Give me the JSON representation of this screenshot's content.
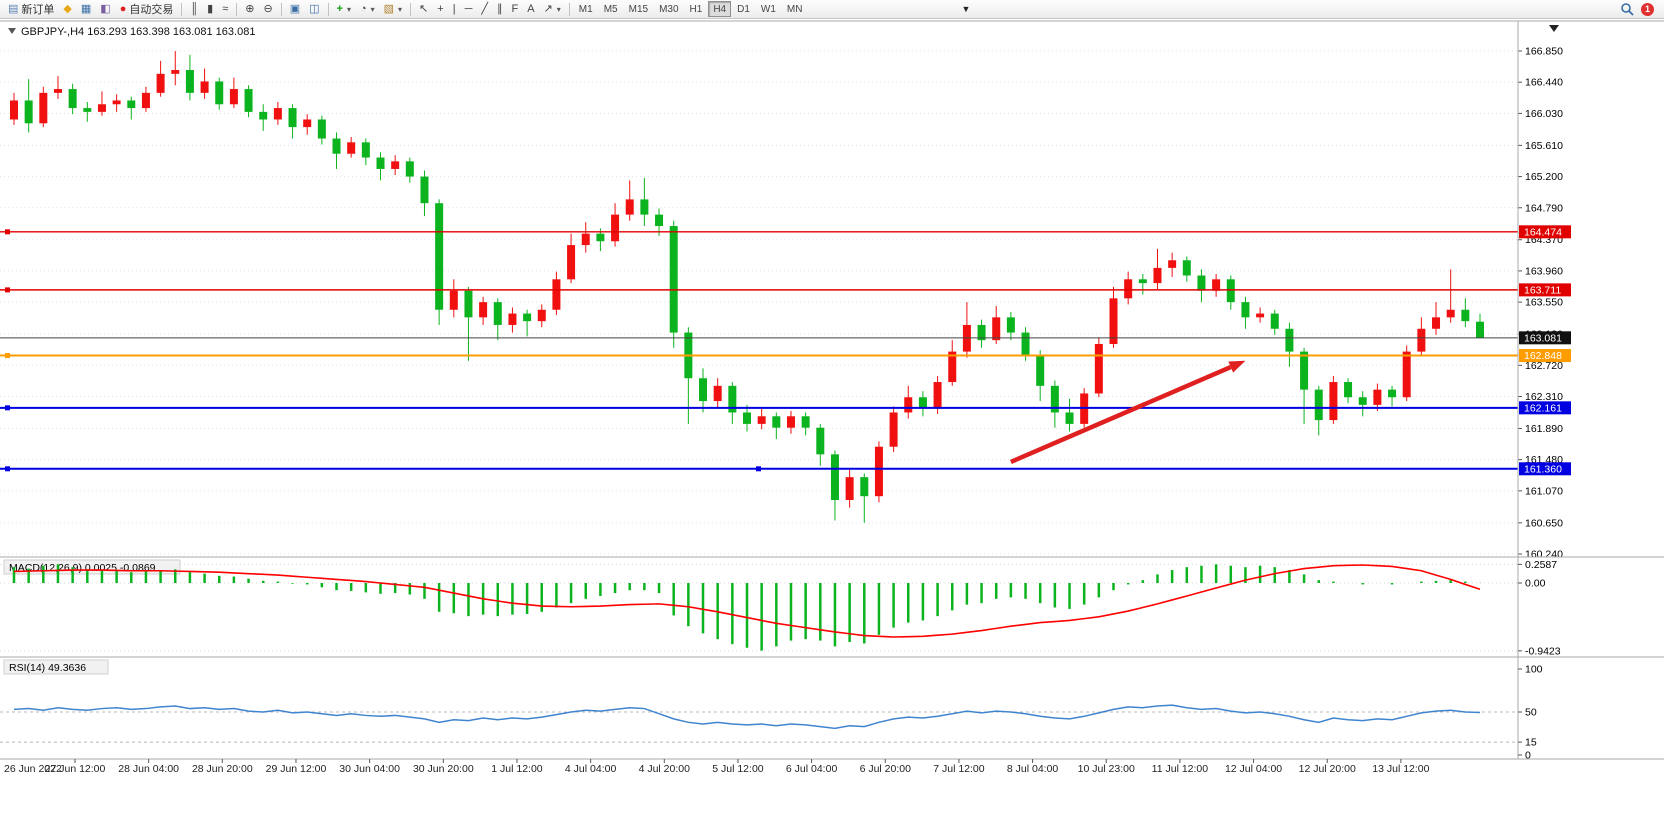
{
  "toolbar": {
    "new_order_label": "新订单",
    "auto_trading_label": "自动交易",
    "timeframes": [
      "M1",
      "M5",
      "M15",
      "M30",
      "H1",
      "H4",
      "D1",
      "W1",
      "MN"
    ],
    "active_timeframe": "H4",
    "icons": {
      "triangle_down": "▼",
      "caret": "▾",
      "new_order": "▤",
      "market_watch": "◆",
      "navigator": "▦",
      "terminal": "◧",
      "auto_trading_dot": "●",
      "bar_chart": "║",
      "candlestick": "▮",
      "line_chart": "≈",
      "zoom_in": "⊕",
      "zoom_out": "⊖",
      "tile_windows": "▣",
      "cascade_windows": "◫",
      "indicators": "+",
      "periods": "◔",
      "templates": "▧",
      "cursor": "↖",
      "crosshair": "+",
      "vline": "|",
      "hline": "─",
      "trendline": "╱",
      "channel": "∥",
      "fibonacci": "F",
      "text_tool": "A",
      "arrow_tool": "↗",
      "badge": "1"
    }
  },
  "chart": {
    "symbol": "GBPJPY-,H4",
    "ohlc_label": "163.293 163.398 163.081 163.081",
    "current_price": "163.081",
    "price_axis": [
      "166.850",
      "166.440",
      "166.030",
      "165.610",
      "165.200",
      "164.790",
      "164.370",
      "163.960",
      "163.550",
      "163.130",
      "162.720",
      "162.310",
      "161.890",
      "161.480",
      "161.070",
      "160.650",
      "160.240"
    ],
    "time_axis": [
      "26 Jun 2022",
      "27 Jun 12:00",
      "28 Jun 04:00",
      "28 Jun 20:00",
      "29 Jun 12:00",
      "30 Jun 04:00",
      "30 Jun 20:00",
      "1 Jul 12:00",
      "4 Jul 04:00",
      "4 Jul 20:00",
      "5 Jul 12:00",
      "6 Jul 04:00",
      "6 Jul 20:00",
      "7 Jul 12:00",
      "8 Jul 04:00",
      "10 Jul 23:00",
      "11 Jul 12:00",
      "12 Jul 04:00",
      "12 Jul 20:00",
      "13 Jul 12:00"
    ],
    "hlines": [
      {
        "price": "164.474",
        "color": "#e00000",
        "width": 1.4,
        "center_handle": false
      },
      {
        "price": "163.711",
        "color": "#e00000",
        "width": 1.4,
        "center_handle": false
      },
      {
        "price": "162.848",
        "color": "#ff9d00",
        "width": 2,
        "center_handle": false
      },
      {
        "price": "162.161",
        "color": "#0000e0",
        "width": 2,
        "center_handle": false
      },
      {
        "price": "161.360",
        "color": "#0000e0",
        "width": 2,
        "center_handle": true
      }
    ],
    "annotations": {
      "arrow": {
        "from_index": 68,
        "from_price": 161.45,
        "to_index": 84,
        "to_price": 162.78,
        "color": "#e02020"
      }
    },
    "colors": {
      "up": "#f01010",
      "down": "#0bb41e",
      "grid": "#e4e4e4",
      "current_line": "#444444",
      "current_badge": "#111111",
      "rsi_line": "#3f84cf",
      "macd_signal": "#ff0000",
      "macd_hist": "#0bb41e",
      "arrow": "#e02020"
    }
  },
  "macd": {
    "label": "MACD(12,26,9) 0.0025 -0.0869",
    "axis": [
      {
        "label": "0.2587",
        "value": 0.2587
      },
      {
        "label": "0.00",
        "value": 0
      },
      {
        "label": "-0.9423",
        "value": -0.9423
      }
    ]
  },
  "rsi": {
    "label": "RSI(14) 49.3636",
    "axis": [
      {
        "label": "100",
        "value": 100,
        "dashed": false
      },
      {
        "label": "50",
        "value": 50,
        "dashed": true
      },
      {
        "label": "15",
        "value": 15,
        "dashed": true
      },
      {
        "label": "0",
        "value": 0,
        "dashed": false
      }
    ]
  },
  "chart_data": {
    "type": "candlestick",
    "symbol": "GBPJPY",
    "timeframe": "H4",
    "ylim": [
      160.24,
      166.85
    ],
    "up_means": "red (CN convention)",
    "candles": [
      [
        165.95,
        166.3,
        165.88,
        166.2
      ],
      [
        166.2,
        166.48,
        165.78,
        165.9
      ],
      [
        165.9,
        166.38,
        165.85,
        166.3
      ],
      [
        166.3,
        166.52,
        166.22,
        166.35
      ],
      [
        166.35,
        166.42,
        166.02,
        166.1
      ],
      [
        166.1,
        166.18,
        165.92,
        166.05
      ],
      [
        166.05,
        166.32,
        166.0,
        166.15
      ],
      [
        166.15,
        166.28,
        166.05,
        166.2
      ],
      [
        166.2,
        166.25,
        165.95,
        166.1
      ],
      [
        166.1,
        166.38,
        166.05,
        166.3
      ],
      [
        166.3,
        166.72,
        166.25,
        166.55
      ],
      [
        166.55,
        166.85,
        166.4,
        166.6
      ],
      [
        166.6,
        166.8,
        166.2,
        166.3
      ],
      [
        166.3,
        166.62,
        166.22,
        166.45
      ],
      [
        166.45,
        166.5,
        166.08,
        166.15
      ],
      [
        166.15,
        166.5,
        166.1,
        166.35
      ],
      [
        166.35,
        166.4,
        165.98,
        166.05
      ],
      [
        166.05,
        166.15,
        165.8,
        165.95
      ],
      [
        165.95,
        166.18,
        165.88,
        166.1
      ],
      [
        166.1,
        166.15,
        165.7,
        165.85
      ],
      [
        165.85,
        166.02,
        165.75,
        165.95
      ],
      [
        165.95,
        166.0,
        165.62,
        165.7
      ],
      [
        165.7,
        165.78,
        165.3,
        165.5
      ],
      [
        165.5,
        165.72,
        165.45,
        165.65
      ],
      [
        165.65,
        165.7,
        165.35,
        165.45
      ],
      [
        165.45,
        165.52,
        165.15,
        165.3
      ],
      [
        165.3,
        165.48,
        165.22,
        165.4
      ],
      [
        165.4,
        165.45,
        165.12,
        165.2
      ],
      [
        165.2,
        165.28,
        164.68,
        164.85
      ],
      [
        164.85,
        164.9,
        163.25,
        163.45
      ],
      [
        163.45,
        163.85,
        163.35,
        163.7
      ],
      [
        163.7,
        163.75,
        162.78,
        163.35
      ],
      [
        163.35,
        163.62,
        163.25,
        163.55
      ],
      [
        163.55,
        163.6,
        163.05,
        163.25
      ],
      [
        163.25,
        163.48,
        163.15,
        163.4
      ],
      [
        163.4,
        163.45,
        163.1,
        163.3
      ],
      [
        163.3,
        163.52,
        163.22,
        163.45
      ],
      [
        163.45,
        163.95,
        163.38,
        163.85
      ],
      [
        163.85,
        164.45,
        163.8,
        164.3
      ],
      [
        164.3,
        164.6,
        164.2,
        164.45
      ],
      [
        164.45,
        164.52,
        164.22,
        164.35
      ],
      [
        164.35,
        164.85,
        164.28,
        164.7
      ],
      [
        164.7,
        165.15,
        164.62,
        164.9
      ],
      [
        164.9,
        165.18,
        164.55,
        164.7
      ],
      [
        164.7,
        164.78,
        164.42,
        164.55
      ],
      [
        164.55,
        164.62,
        162.95,
        163.15
      ],
      [
        163.15,
        163.22,
        161.95,
        162.55
      ],
      [
        162.55,
        162.68,
        162.1,
        162.25
      ],
      [
        162.25,
        162.55,
        162.15,
        162.45
      ],
      [
        162.45,
        162.5,
        161.95,
        162.1
      ],
      [
        162.1,
        162.2,
        161.85,
        161.95
      ],
      [
        161.95,
        162.15,
        161.88,
        162.05
      ],
      [
        162.05,
        162.1,
        161.75,
        161.9
      ],
      [
        161.9,
        162.12,
        161.82,
        162.05
      ],
      [
        162.05,
        162.1,
        161.8,
        161.9
      ],
      [
        161.9,
        161.95,
        161.4,
        161.55
      ],
      [
        161.55,
        161.6,
        160.68,
        160.95
      ],
      [
        160.95,
        161.35,
        160.85,
        161.25
      ],
      [
        161.25,
        161.3,
        160.65,
        161.0
      ],
      [
        161.0,
        161.72,
        160.92,
        161.65
      ],
      [
        161.65,
        162.18,
        161.58,
        162.1
      ],
      [
        162.1,
        162.45,
        162.02,
        162.3
      ],
      [
        162.3,
        162.38,
        162.05,
        162.15
      ],
      [
        162.15,
        162.58,
        162.08,
        162.5
      ],
      [
        162.5,
        163.05,
        162.45,
        162.9
      ],
      [
        162.9,
        163.55,
        162.82,
        163.25
      ],
      [
        163.25,
        163.32,
        162.95,
        163.05
      ],
      [
        163.05,
        163.5,
        163.0,
        163.35
      ],
      [
        163.35,
        163.42,
        163.05,
        163.15
      ],
      [
        163.15,
        163.22,
        162.78,
        162.85
      ],
      [
        162.85,
        162.92,
        162.25,
        162.45
      ],
      [
        162.45,
        162.52,
        161.9,
        162.1
      ],
      [
        162.1,
        162.28,
        161.85,
        161.95
      ],
      [
        161.95,
        162.42,
        161.9,
        162.35
      ],
      [
        162.35,
        163.08,
        162.3,
        163.0
      ],
      [
        163.0,
        163.75,
        162.95,
        163.6
      ],
      [
        163.6,
        163.95,
        163.52,
        163.85
      ],
      [
        163.85,
        163.92,
        163.65,
        163.8
      ],
      [
        163.8,
        164.25,
        163.72,
        164.0
      ],
      [
        164.0,
        164.2,
        163.88,
        164.1
      ],
      [
        164.1,
        164.15,
        163.82,
        163.9
      ],
      [
        163.9,
        163.98,
        163.55,
        163.7
      ],
      [
        163.7,
        163.92,
        163.62,
        163.85
      ],
      [
        163.85,
        163.9,
        163.45,
        163.55
      ],
      [
        163.55,
        163.62,
        163.2,
        163.35
      ],
      [
        163.35,
        163.48,
        163.28,
        163.4
      ],
      [
        163.4,
        163.45,
        163.12,
        163.2
      ],
      [
        163.2,
        163.28,
        162.7,
        162.9
      ],
      [
        162.9,
        162.95,
        161.95,
        162.4
      ],
      [
        162.4,
        162.45,
        161.8,
        162.0
      ],
      [
        162.0,
        162.58,
        161.95,
        162.5
      ],
      [
        162.5,
        162.55,
        162.22,
        162.3
      ],
      [
        162.3,
        162.38,
        162.05,
        162.2
      ],
      [
        162.2,
        162.48,
        162.12,
        162.4
      ],
      [
        162.4,
        162.45,
        162.18,
        162.3
      ],
      [
        162.3,
        162.98,
        162.25,
        162.9
      ],
      [
        162.9,
        163.35,
        162.85,
        163.2
      ],
      [
        163.2,
        163.55,
        163.12,
        163.35
      ],
      [
        163.35,
        163.98,
        163.28,
        163.45
      ],
      [
        163.45,
        163.6,
        163.22,
        163.3
      ],
      [
        163.293,
        163.398,
        163.081,
        163.081
      ]
    ],
    "macd_histogram": [
      0.22,
      0.2,
      0.24,
      0.26,
      0.22,
      0.19,
      0.18,
      0.17,
      0.15,
      0.16,
      0.18,
      0.19,
      0.15,
      0.13,
      0.1,
      0.09,
      0.06,
      0.03,
      0.02,
      -0.01,
      -0.02,
      -0.06,
      -0.1,
      -0.11,
      -0.13,
      -0.15,
      -0.14,
      -0.16,
      -0.22,
      -0.4,
      -0.42,
      -0.46,
      -0.44,
      -0.46,
      -0.44,
      -0.43,
      -0.4,
      -0.34,
      -0.28,
      -0.22,
      -0.18,
      -0.14,
      -0.1,
      -0.1,
      -0.14,
      -0.45,
      -0.6,
      -0.7,
      -0.78,
      -0.85,
      -0.9,
      -0.94,
      -0.88,
      -0.8,
      -0.78,
      -0.8,
      -0.88,
      -0.82,
      -0.84,
      -0.72,
      -0.62,
      -0.55,
      -0.52,
      -0.46,
      -0.38,
      -0.3,
      -0.28,
      -0.22,
      -0.2,
      -0.22,
      -0.28,
      -0.34,
      -0.36,
      -0.3,
      -0.2,
      -0.1,
      -0.02,
      0.04,
      0.12,
      0.18,
      0.22,
      0.24,
      0.26,
      0.24,
      0.22,
      0.24,
      0.22,
      0.18,
      0.12,
      0.04,
      0.02,
      0.0,
      -0.02,
      0.0,
      -0.02,
      0.0,
      0.02,
      0.03,
      0.04,
      0.02,
      0.0025
    ],
    "macd_signal": [
      0.16,
      0.165,
      0.17,
      0.175,
      0.18,
      0.18,
      0.18,
      0.175,
      0.17,
      0.17,
      0.17,
      0.165,
      0.16,
      0.155,
      0.15,
      0.14,
      0.13,
      0.12,
      0.11,
      0.095,
      0.08,
      0.065,
      0.05,
      0.035,
      0.02,
      0.0,
      -0.02,
      -0.04,
      -0.06,
      -0.1,
      -0.14,
      -0.18,
      -0.22,
      -0.25,
      -0.28,
      -0.3,
      -0.32,
      -0.325,
      -0.33,
      -0.325,
      -0.32,
      -0.31,
      -0.3,
      -0.295,
      -0.29,
      -0.31,
      -0.33,
      -0.365,
      -0.4,
      -0.44,
      -0.48,
      -0.52,
      -0.56,
      -0.59,
      -0.62,
      -0.65,
      -0.68,
      -0.705,
      -0.73,
      -0.74,
      -0.75,
      -0.745,
      -0.74,
      -0.725,
      -0.71,
      -0.685,
      -0.66,
      -0.63,
      -0.6,
      -0.575,
      -0.55,
      -0.535,
      -0.52,
      -0.495,
      -0.47,
      -0.43,
      -0.39,
      -0.34,
      -0.29,
      -0.235,
      -0.18,
      -0.125,
      -0.07,
      -0.015,
      0.04,
      0.085,
      0.13,
      0.165,
      0.2,
      0.22,
      0.24,
      0.245,
      0.25,
      0.24,
      0.23,
      0.2,
      0.17,
      0.11,
      0.05,
      -0.02,
      -0.0869
    ],
    "rsi": [
      53,
      54,
      52,
      55,
      53,
      52,
      54,
      55,
      53,
      54,
      56,
      57,
      54,
      55,
      53,
      54,
      51,
      50,
      52,
      49,
      50,
      48,
      46,
      48,
      46,
      45,
      46,
      44,
      42,
      38,
      41,
      40,
      43,
      41,
      43,
      42,
      44,
      47,
      50,
      52,
      51,
      53,
      55,
      54,
      48,
      42,
      38,
      36,
      38,
      36,
      35,
      36,
      34,
      36,
      35,
      33,
      31,
      34,
      33,
      38,
      42,
      44,
      43,
      45,
      48,
      51,
      49,
      51,
      50,
      48,
      45,
      43,
      42,
      45,
      49,
      53,
      56,
      55,
      57,
      58,
      55,
      53,
      54,
      51,
      49,
      50,
      48,
      45,
      41,
      38,
      43,
      41,
      40,
      42,
      41,
      45,
      49,
      51,
      52,
      50,
      49.36
    ]
  }
}
